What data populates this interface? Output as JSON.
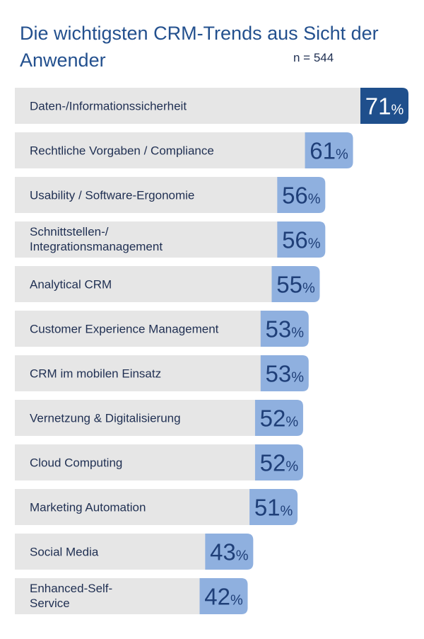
{
  "header": {
    "title": "Die  wichtigsten CRM-Trends aus Sicht der Anwender",
    "sample_size": "n = 544"
  },
  "colors": {
    "track": "#e6e6e6",
    "highlight": "#1f4f8c",
    "bar": "#8fb0df",
    "text_on_highlight": "#ffffff",
    "text_on_bar": "#1f3f78"
  },
  "chart_data": {
    "type": "bar",
    "orientation": "horizontal",
    "unit": "%",
    "xlim": [
      0,
      71
    ],
    "categories": [
      [
        "Daten-/Informationssicherheit"
      ],
      [
        "Rechtliche Vorgaben / Compliance"
      ],
      [
        "Usability / Software-Ergonomie"
      ],
      [
        "Schnittstellen-/",
        "Integrationsmanagement"
      ],
      [
        "Analytical CRM"
      ],
      [
        "Customer Experience Management"
      ],
      [
        "CRM im mobilen Einsatz"
      ],
      [
        "Vernetzung & Digitalisierung"
      ],
      [
        "Cloud Computing"
      ],
      [
        "Marketing Automation"
      ],
      [
        "Social Media"
      ],
      [
        "Enhanced-Self-",
        "Service"
      ]
    ],
    "values": [
      71,
      61,
      56,
      56,
      55,
      53,
      53,
      52,
      52,
      51,
      43,
      42
    ],
    "highlight_index": 0
  }
}
